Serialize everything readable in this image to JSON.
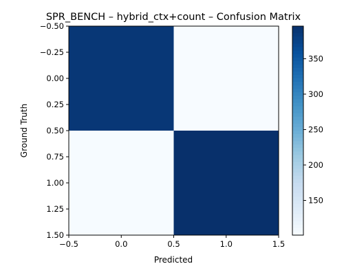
{
  "chart_data": {
    "type": "heatmap",
    "title": "SPR_BENCH – hybrid_ctx+count – Confusion Matrix",
    "xlabel": "Predicted",
    "ylabel": "Ground Truth",
    "x_categories": [
      0,
      1
    ],
    "y_categories": [
      0,
      1
    ],
    "values": [
      [
        388,
        101
      ],
      [
        102,
        396
      ]
    ],
    "xlim": [
      -0.5,
      1.5
    ],
    "ylim": [
      1.5,
      -0.5
    ],
    "x_ticks": [
      "−0.5",
      "0.0",
      "0.5",
      "1.0",
      "1.5"
    ],
    "x_tick_values": [
      -0.5,
      0.0,
      0.5,
      1.0,
      1.5
    ],
    "y_ticks": [
      "−0.50",
      "−0.25",
      "0.00",
      "0.25",
      "0.50",
      "0.75",
      "1.00",
      "1.25",
      "1.50"
    ],
    "y_tick_values": [
      -0.5,
      -0.25,
      0.0,
      0.25,
      0.5,
      0.75,
      1.0,
      1.25,
      1.5
    ],
    "colorbar": {
      "colormap": "Blues",
      "min": 101,
      "max": 396,
      "ticks": [
        "150",
        "200",
        "250",
        "300",
        "350"
      ],
      "tick_values": [
        150,
        200,
        250,
        300,
        350
      ]
    },
    "grid": false,
    "legend": "none"
  }
}
